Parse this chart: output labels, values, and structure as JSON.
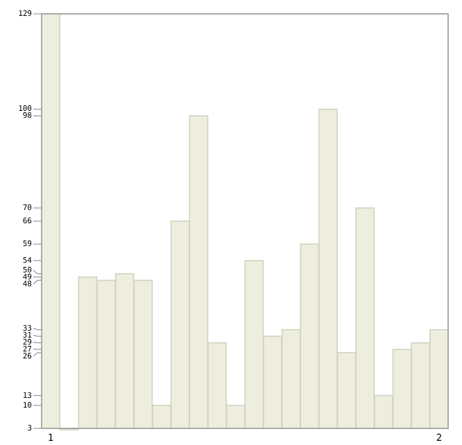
{
  "chart_data": {
    "type": "bar",
    "categories": [
      "1",
      null,
      null,
      null,
      null,
      null,
      null,
      null,
      null,
      null,
      null,
      null,
      null,
      null,
      null,
      null,
      null,
      null,
      null,
      null,
      null,
      "2"
    ],
    "values": [
      129,
      3,
      49,
      48,
      50,
      48,
      10,
      66,
      98,
      29,
      10,
      54,
      31,
      33,
      59,
      100,
      26,
      70,
      13,
      27,
      29,
      33
    ],
    "color": "#eeeedf",
    "ylim": [
      3,
      129
    ],
    "yticks": [
      3,
      10,
      13,
      26,
      27,
      29,
      31,
      33,
      48,
      49,
      50,
      54,
      59,
      66,
      70,
      98,
      100,
      129
    ],
    "grid": false
  }
}
